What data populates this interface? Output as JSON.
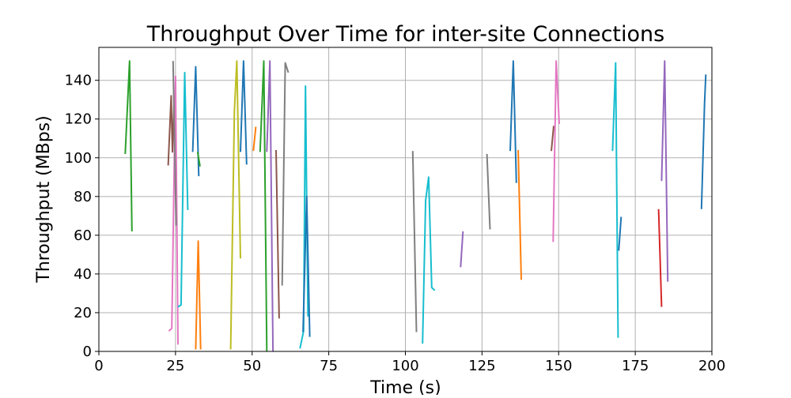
{
  "chart_data": {
    "type": "line",
    "title": "Throughput Over Time for inter-site Connections",
    "xlabel": "Time (s)",
    "ylabel": "Throughput (MBps)",
    "xlim": [
      0,
      200
    ],
    "ylim": [
      0,
      157
    ],
    "xticks": [
      0,
      25,
      50,
      75,
      100,
      125,
      150,
      175,
      200
    ],
    "yticks": [
      0,
      20,
      40,
      60,
      80,
      100,
      120,
      140
    ],
    "grid": true,
    "series": [
      {
        "color": "#2ca02c",
        "points": [
          [
            8.6,
            102
          ],
          [
            10,
            150
          ],
          [
            10.8,
            62
          ]
        ]
      },
      {
        "color": "#8c564b",
        "points": [
          [
            22.6,
            96
          ],
          [
            23.6,
            132
          ],
          [
            24,
            103
          ],
          [
            24.6,
            132
          ]
        ]
      },
      {
        "color": "#e377c2",
        "points": [
          [
            22.8,
            10.5
          ],
          [
            23.8,
            12
          ],
          [
            25,
            142
          ],
          [
            25.8,
            3.5
          ]
        ]
      },
      {
        "color": "#7f7f7f",
        "points": [
          [
            24.2,
            150
          ],
          [
            25.2,
            65
          ]
        ]
      },
      {
        "color": "#17becf",
        "points": [
          [
            25.8,
            23
          ],
          [
            26.8,
            24
          ],
          [
            28,
            144
          ],
          [
            29,
            73
          ]
        ]
      },
      {
        "color": "#1f77b4",
        "points": [
          [
            30.6,
            103
          ],
          [
            31.6,
            147
          ],
          [
            32.6,
            90.5
          ]
        ]
      },
      {
        "color": "#2ca02c",
        "points": [
          [
            32.2,
            103
          ],
          [
            33,
            95.5
          ]
        ]
      },
      {
        "color": "#ff7f0e",
        "points": [
          [
            31.6,
            1
          ],
          [
            32.4,
            57
          ],
          [
            33.2,
            1
          ]
        ]
      },
      {
        "color": "#bcbd22",
        "points": [
          [
            43,
            1
          ],
          [
            44.2,
            124
          ],
          [
            45,
            150
          ],
          [
            46.2,
            48
          ]
        ]
      },
      {
        "color": "#1f77b4",
        "points": [
          [
            46.2,
            103
          ],
          [
            47.2,
            150
          ],
          [
            48.2,
            96.5
          ]
        ]
      },
      {
        "color": "#ff7f0e",
        "points": [
          [
            50.4,
            103.5
          ],
          [
            51.2,
            116
          ]
        ]
      },
      {
        "color": "#2ca02c",
        "points": [
          [
            52.6,
            103
          ],
          [
            53.8,
            150
          ],
          [
            54.8,
            0
          ]
        ]
      },
      {
        "color": "#9467bd",
        "points": [
          [
            54.8,
            103
          ],
          [
            55.8,
            150
          ],
          [
            56.8,
            0
          ]
        ]
      },
      {
        "color": "#8c564b",
        "points": [
          [
            57.8,
            104
          ],
          [
            58.8,
            17
          ]
        ]
      },
      {
        "color": "#7f7f7f",
        "points": [
          [
            59.8,
            34
          ],
          [
            60.8,
            149
          ],
          [
            61.8,
            144
          ]
        ]
      },
      {
        "color": "#17becf",
        "points": [
          [
            65.6,
            1.5
          ],
          [
            66.8,
            10.5
          ],
          [
            67.4,
            137
          ],
          [
            68.2,
            18
          ]
        ]
      },
      {
        "color": "#1f77b4",
        "points": [
          [
            66.6,
            10
          ],
          [
            67.8,
            80
          ],
          [
            68.8,
            7.5
          ]
        ]
      },
      {
        "color": "#7f7f7f",
        "points": [
          [
            102.4,
            103.5
          ],
          [
            103.6,
            10
          ]
        ]
      },
      {
        "color": "#17becf",
        "points": [
          [
            105.6,
            4
          ],
          [
            106.6,
            78
          ],
          [
            107.6,
            90
          ],
          [
            108.6,
            33
          ],
          [
            109.6,
            31.5
          ]
        ]
      },
      {
        "color": "#9467bd",
        "points": [
          [
            118,
            43.5
          ],
          [
            118.8,
            62
          ]
        ]
      },
      {
        "color": "#7f7f7f",
        "points": [
          [
            126.6,
            102
          ],
          [
            127.6,
            63
          ]
        ]
      },
      {
        "color": "#1f77b4",
        "points": [
          [
            134.2,
            103.5
          ],
          [
            135.2,
            150
          ],
          [
            136.2,
            87
          ]
        ]
      },
      {
        "color": "#ff7f0e",
        "points": [
          [
            136.8,
            104
          ],
          [
            137.8,
            37
          ]
        ]
      },
      {
        "color": "#8c564b",
        "points": [
          [
            147.6,
            103.5
          ],
          [
            148.4,
            116.5
          ]
        ]
      },
      {
        "color": "#e377c2",
        "points": [
          [
            148.2,
            56.5
          ],
          [
            149.2,
            150
          ],
          [
            150.2,
            117.5
          ]
        ]
      },
      {
        "color": "#17becf",
        "points": [
          [
            167.6,
            103.5
          ],
          [
            168.6,
            149
          ],
          [
            169.4,
            7
          ]
        ]
      },
      {
        "color": "#1f77b4",
        "points": [
          [
            169.6,
            52
          ],
          [
            170.4,
            69.5
          ]
        ]
      },
      {
        "color": "#d62728",
        "points": [
          [
            182.6,
            73.5
          ],
          [
            183.6,
            23
          ]
        ]
      },
      {
        "color": "#9467bd",
        "points": [
          [
            183.6,
            88
          ],
          [
            184.6,
            150
          ],
          [
            185.6,
            36
          ]
        ]
      },
      {
        "color": "#1f77b4",
        "points": [
          [
            196.6,
            73.5
          ],
          [
            197.6,
            128
          ],
          [
            198,
            143
          ]
        ]
      }
    ]
  }
}
